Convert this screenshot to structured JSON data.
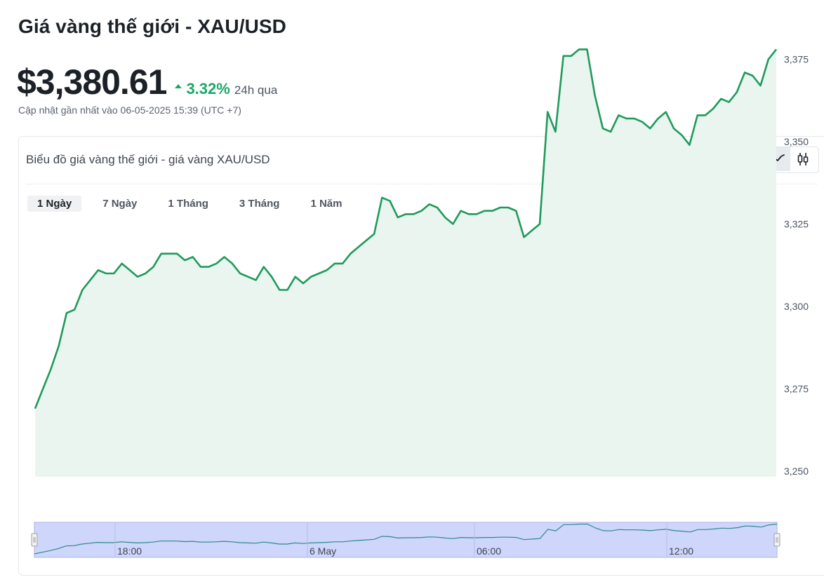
{
  "header": {
    "title": "Giá vàng thế giới - XAU/USD",
    "price": "$3,380.61",
    "change_pct": "3.32%",
    "change_period": "24h qua",
    "updated": "Cập nhật gần nhất vào 06-05-2025 15:39 (UTC +7)"
  },
  "card": {
    "title": "Biểu đồ giá vàng thế giới - giá vàng XAU/USD",
    "chart_type_buttons": [
      {
        "icon": "line-chart-icon",
        "active": true
      },
      {
        "icon": "candlestick-icon",
        "active": false
      }
    ]
  },
  "tabs": [
    {
      "label": "1 Ngày",
      "active": true
    },
    {
      "label": "7 Ngày",
      "active": false
    },
    {
      "label": "1 Tháng",
      "active": false
    },
    {
      "label": "3 Tháng",
      "active": false
    },
    {
      "label": "1 Năm",
      "active": false
    }
  ],
  "colors": {
    "line": "#1f9a5c",
    "area": "#e9f5ee",
    "up": "#1aa86a",
    "navigator_fill": "#cfd6fb",
    "navigator_line": "#2a8a8a"
  },
  "chart_data": {
    "type": "area",
    "title": "",
    "xlabel": "",
    "ylabel": "",
    "ylim": [
      3250,
      3379
    ],
    "yticks": [
      3250,
      3275,
      3300,
      3325,
      3350,
      3375
    ],
    "ytick_labels": [
      "3,250",
      "3,275",
      "3,300",
      "3,325",
      "3,350",
      "3,375"
    ],
    "grid": false,
    "series": [
      {
        "values": [
          3269,
          3275,
          3281,
          3288,
          3298,
          3299,
          3305,
          3308,
          3311,
          3310,
          3310,
          3313,
          3311,
          3309,
          3310,
          3312,
          3316,
          3316,
          3316,
          3314,
          3315,
          3312,
          3312,
          3313,
          3315,
          3313,
          3310,
          3309,
          3308,
          3312,
          3309,
          3305,
          3305,
          3309,
          3307,
          3309,
          3310,
          3311,
          3313,
          3313,
          3316,
          3318,
          3320,
          3322,
          3333,
          3332,
          3327,
          3328,
          3328,
          3329,
          3331,
          3330,
          3327,
          3325,
          3329,
          3328,
          3328,
          3329,
          3329,
          3330,
          3330,
          3329,
          3321,
          3323,
          3325,
          3359,
          3353,
          3376,
          3376,
          3378,
          3378,
          3364,
          3354,
          3353,
          3358,
          3357,
          3357,
          3356,
          3354,
          3357,
          3359,
          3354,
          3352,
          3349,
          3358,
          3358,
          3360,
          3363,
          3362,
          3365,
          3371,
          3370,
          3367,
          3375,
          3378
        ]
      }
    ],
    "navigator": {
      "x_labels": [
        "18:00",
        "6 May",
        "06:00",
        "12:00"
      ]
    }
  }
}
